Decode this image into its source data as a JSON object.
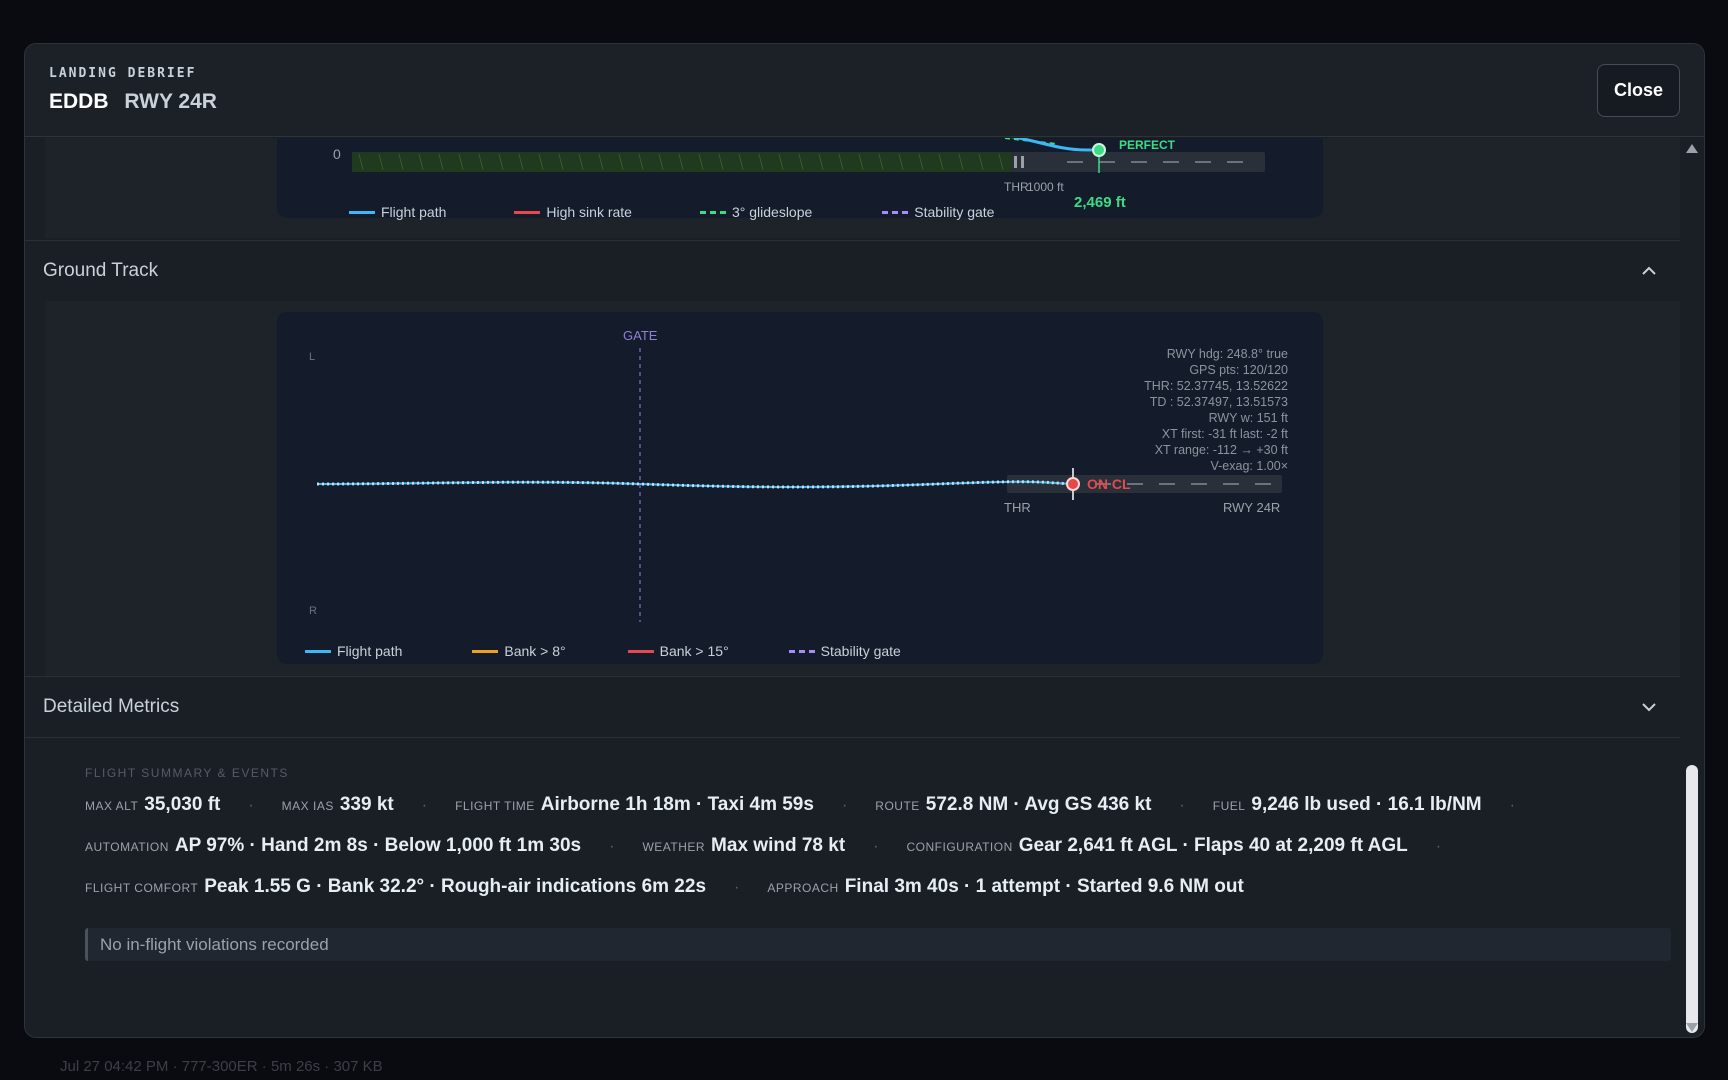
{
  "background": {
    "footer_text": "Jul 27 04:42 PM  ·  777-300ER  ·  5m 26s  ·  307 KB"
  },
  "header": {
    "eyebrow": "LANDING DEBRIEF",
    "airport": "EDDB",
    "runway": "RWY 24R",
    "close_label": "Close"
  },
  "vertical_profile": {
    "axis_zero": "0",
    "thr_label": "THR",
    "tick_label": "1000 ft",
    "touchdown_label": "PERFECT",
    "touchdown_distance": "2,469 ft",
    "legend": [
      {
        "label": "Flight path",
        "color": "#3fb7f5",
        "style": "solid"
      },
      {
        "label": "High sink rate",
        "color": "#e5484d",
        "style": "solid"
      },
      {
        "label": "3° glideslope",
        "color": "#3ddc84",
        "style": "dashed"
      },
      {
        "label": "Stability gate",
        "color": "#a78bfa",
        "style": "dashed"
      }
    ]
  },
  "ground_track": {
    "title": "Ground Track",
    "gate_label": "GATE",
    "left_label": "L",
    "right_label": "R",
    "thr_label": "THR",
    "runway_label": "RWY 24R",
    "touchdown_label": "ON CL",
    "info_lines": [
      "RWY hdg: 248.8° true",
      "GPS pts: 120/120",
      "THR: 52.37745, 13.52622",
      "TD : 52.37497, 13.51573",
      "RWY w: 151 ft",
      "XT first: -31 ft last: -2 ft",
      "XT range: -112 → +30 ft",
      "V-exag: 1.00×"
    ],
    "legend": [
      {
        "label": "Flight path",
        "color": "#3fb7f5",
        "style": "solid"
      },
      {
        "label": "Bank > 8°",
        "color": "#f0a020",
        "style": "solid"
      },
      {
        "label": "Bank > 15°",
        "color": "#e5484d",
        "style": "solid"
      },
      {
        "label": "Stability gate",
        "color": "#a78bfa",
        "style": "dashed"
      }
    ]
  },
  "detailed_metrics": {
    "title": "Detailed Metrics",
    "summary_label": "FLIGHT SUMMARY & EVENTS",
    "row1": [
      {
        "key": "MAX ALT",
        "value": "35,030 ft"
      },
      {
        "key": "MAX IAS",
        "value": "339 kt"
      },
      {
        "key": "FLIGHT TIME",
        "value": "Airborne 1h 18m · Taxi 4m 59s"
      },
      {
        "key": "ROUTE",
        "value": "572.8 NM · Avg GS 436 kt"
      },
      {
        "key": "FUEL",
        "value": "9,246 lb used · 16.1 lb/NM"
      }
    ],
    "row2": [
      {
        "key": "AUTOMATION",
        "value": "AP 97% · Hand 2m 8s · Below 1,000 ft 1m 30s"
      },
      {
        "key": "WEATHER",
        "value": "Max wind 78 kt"
      },
      {
        "key": "CONFIGURATION",
        "value": "Gear 2,641 ft AGL · Flaps 40 at 2,209 ft AGL"
      }
    ],
    "row3": [
      {
        "key": "FLIGHT COMFORT",
        "value": "Peak 1.55 G · Bank 32.2° · Rough-air indications 6m 22s"
      },
      {
        "key": "APPROACH",
        "value": "Final 3m 40s · 1 attempt · Started 9.6 NM out"
      }
    ],
    "violations_text": "No in-flight violations recorded"
  }
}
